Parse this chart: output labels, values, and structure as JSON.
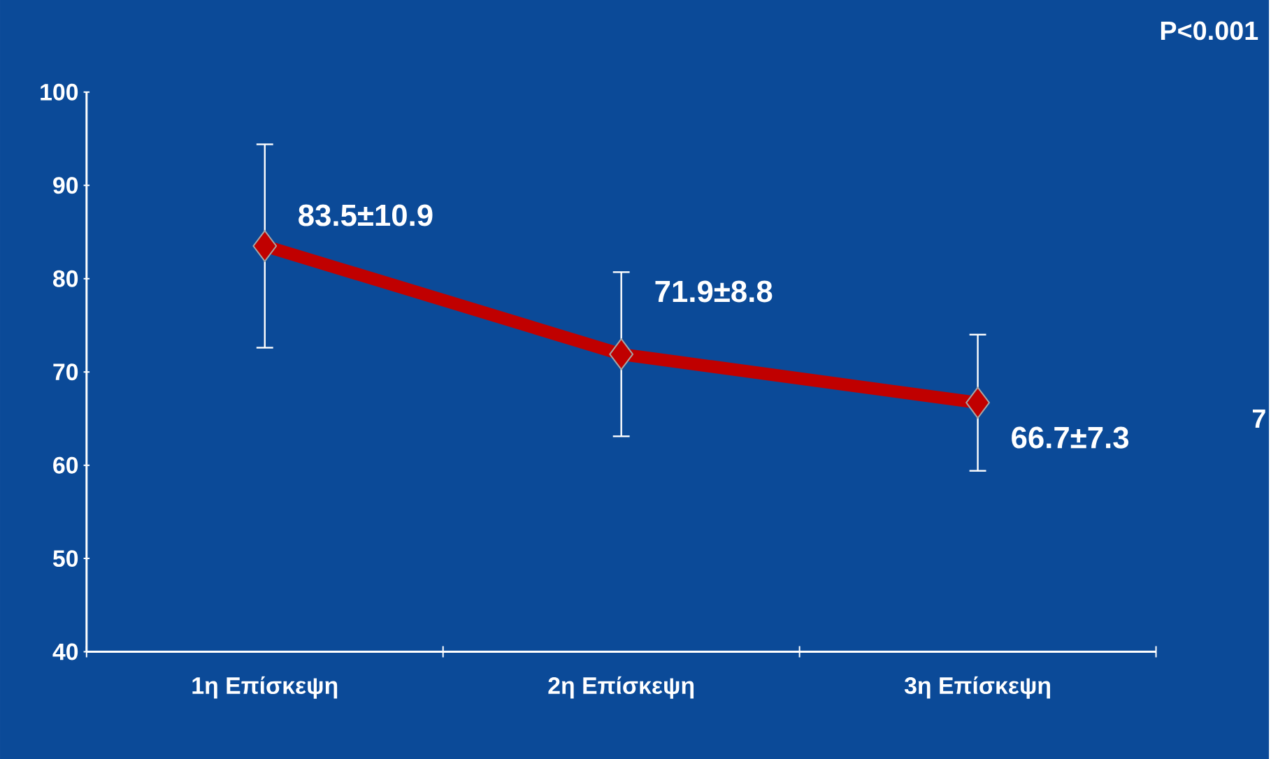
{
  "chart_data": {
    "type": "line",
    "categories": [
      "1η Επίσκεψη",
      "2η Επίσκεψη",
      "3η Επίσκεψη"
    ],
    "values": [
      83.5,
      71.9,
      66.7
    ],
    "errors": [
      10.9,
      8.8,
      7.3
    ],
    "value_labels": [
      "83.5±10.9",
      "71.9±8.8",
      "66.7±7.3"
    ],
    "color": "#c00000",
    "marker": "diamond",
    "line_style": "solid",
    "grid": false,
    "ylim": [
      40,
      100
    ],
    "yticks": [
      40,
      50,
      60,
      70,
      80,
      90,
      100
    ],
    "annotations": [
      "P<0.001",
      "7"
    ]
  }
}
